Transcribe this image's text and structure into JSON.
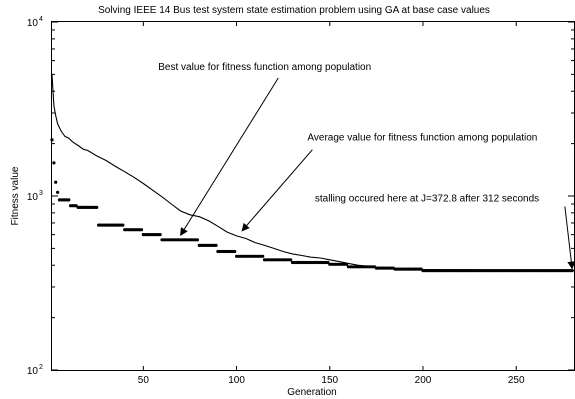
{
  "chart_data": {
    "type": "scatter",
    "title": "Solving IEEE 14 Bus test system state estimation problem using GA at base case values",
    "xlabel": "Generation",
    "ylabel": "Fitness value",
    "xlim": [
      1,
      281
    ],
    "ylim": [
      100,
      10000
    ],
    "yscale": "log",
    "grid": false,
    "x_ticks": [
      50,
      100,
      150,
      200,
      250
    ],
    "y_ticks": [
      {
        "value": 100,
        "base": "10",
        "exp": "2"
      },
      {
        "value": 1000,
        "base": "10",
        "exp": "3"
      },
      {
        "value": 10000,
        "base": "10",
        "exp": "4"
      }
    ],
    "series": [
      {
        "name": "Average value for fitness function among population",
        "style": "line",
        "color": "#000000",
        "points": [
          [
            1,
            5000
          ],
          [
            2,
            3300
          ],
          [
            3,
            2900
          ],
          [
            4,
            2600
          ],
          [
            6,
            2350
          ],
          [
            8,
            2200
          ],
          [
            10,
            2150
          ],
          [
            12,
            2050
          ],
          [
            15,
            1950
          ],
          [
            18,
            1850
          ],
          [
            20,
            1830
          ],
          [
            25,
            1700
          ],
          [
            30,
            1600
          ],
          [
            35,
            1480
          ],
          [
            40,
            1380
          ],
          [
            45,
            1280
          ],
          [
            50,
            1180
          ],
          [
            55,
            1080
          ],
          [
            60,
            990
          ],
          [
            65,
            900
          ],
          [
            70,
            820
          ],
          [
            75,
            780
          ],
          [
            80,
            760
          ],
          [
            85,
            720
          ],
          [
            90,
            670
          ],
          [
            95,
            620
          ],
          [
            100,
            590
          ],
          [
            105,
            570
          ],
          [
            110,
            540
          ],
          [
            115,
            520
          ],
          [
            120,
            500
          ],
          [
            125,
            480
          ],
          [
            130,
            465
          ],
          [
            135,
            455
          ],
          [
            140,
            445
          ],
          [
            145,
            440
          ],
          [
            150,
            430
          ],
          [
            155,
            420
          ],
          [
            160,
            410
          ],
          [
            165,
            400
          ],
          [
            170,
            395
          ],
          [
            175,
            390
          ],
          [
            180,
            385
          ],
          [
            190,
            382
          ],
          [
            200,
            378
          ],
          [
            220,
            376
          ],
          [
            240,
            375
          ],
          [
            260,
            374
          ],
          [
            281,
            373
          ]
        ]
      },
      {
        "name": "Best value for fitness function among population",
        "style": "markers",
        "color": "#000000",
        "steps": [
          [
            1,
            2,
            2100
          ],
          [
            2,
            3,
            1550
          ],
          [
            3,
            4,
            1200
          ],
          [
            4,
            5,
            1050
          ],
          [
            5,
            11,
            950
          ],
          [
            11,
            15,
            880
          ],
          [
            15,
            26,
            860
          ],
          [
            26,
            40,
            680
          ],
          [
            40,
            50,
            640
          ],
          [
            50,
            60,
            600
          ],
          [
            60,
            80,
            560
          ],
          [
            80,
            90,
            520
          ],
          [
            90,
            100,
            480
          ],
          [
            100,
            115,
            450
          ],
          [
            115,
            130,
            430
          ],
          [
            130,
            150,
            415
          ],
          [
            150,
            160,
            405
          ],
          [
            160,
            175,
            392
          ],
          [
            175,
            185,
            385
          ],
          [
            185,
            200,
            380
          ],
          [
            200,
            281,
            372.8
          ]
        ]
      }
    ],
    "annotations": [
      {
        "text": "Best value for fitness function among population",
        "text_x": 58,
        "text_y": 5300,
        "arrow_to": [
          70,
          580
        ]
      },
      {
        "text": "Average value for fitness function among population",
        "text_x": 138,
        "text_y": 2080,
        "arrow_to": [
          103,
          615
        ]
      },
      {
        "text": "stalling occured here at J=372.8 after 312 seconds",
        "text_x": 142,
        "text_y": 930,
        "arrow_to": [
          280,
          373
        ]
      }
    ]
  }
}
